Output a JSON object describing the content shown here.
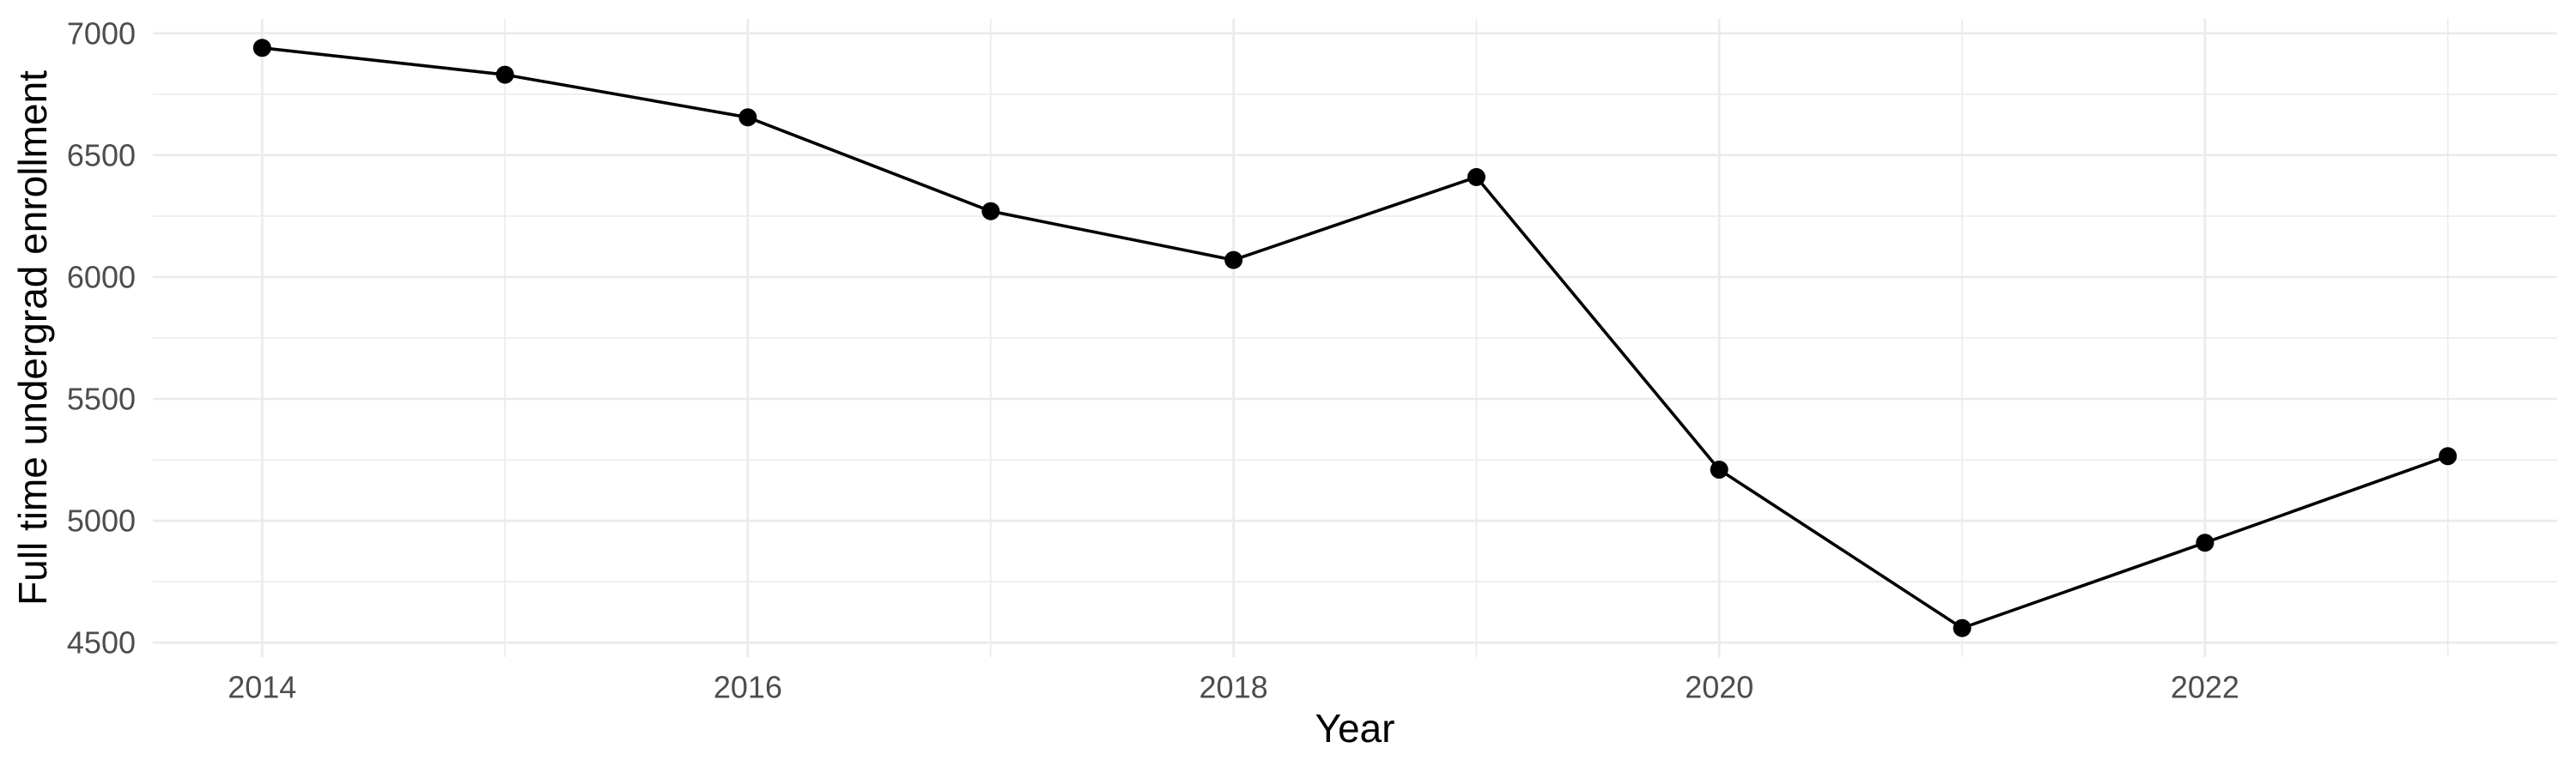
{
  "chart_data": {
    "type": "line",
    "title": "",
    "xlabel": "Year",
    "ylabel": "Full time undergrad enrollment",
    "x": [
      2014,
      2015,
      2016,
      2017,
      2018,
      2019,
      2020,
      2021,
      2022,
      2023
    ],
    "series": [
      {
        "name": "Full time undergrad enrollment",
        "values": [
          6940,
          6830,
          6655,
          6270,
          6070,
          6410,
          5210,
          4560,
          4910,
          5265
        ]
      }
    ],
    "x_ticks": {
      "major": [
        2014,
        2016,
        2018,
        2020,
        2022
      ],
      "minor": [
        2015,
        2017,
        2019,
        2021,
        2023
      ]
    },
    "y_ticks": {
      "major": [
        4500,
        5000,
        5500,
        6000,
        6500,
        7000
      ],
      "minor": [
        4750,
        5250,
        5750,
        6250,
        6750
      ]
    },
    "xlim": [
      2013.55,
      2023.45
    ],
    "ylim": [
      4441,
      7059
    ],
    "grid": "major+minor",
    "legend": "none",
    "style": {
      "background": "#FFFFFF",
      "grid_color": "#EBEBEB",
      "line_color": "#000000",
      "point_color": "#000000",
      "tick_label_color": "#4D4D4D",
      "axis_title_color": "#000000"
    }
  }
}
